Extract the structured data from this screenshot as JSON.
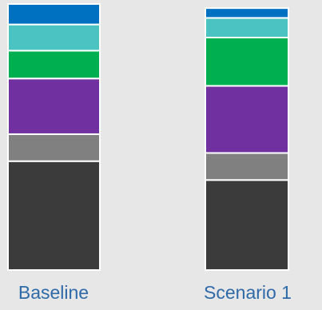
{
  "chart_data": {
    "type": "stacked-bar",
    "categories": [
      "Baseline",
      "Scenario 1"
    ],
    "series": [
      {
        "color": "#3b3b3b",
        "values": [
          133,
          110
        ]
      },
      {
        "color": "#808080",
        "values": [
          33,
          33
        ]
      },
      {
        "color": "#7030a0",
        "values": [
          68,
          82
        ]
      },
      {
        "color": "#00b050",
        "values": [
          34,
          59
        ]
      },
      {
        "color": "#4cc3c3",
        "values": [
          32,
          24
        ]
      },
      {
        "color": "#0070c0",
        "values": [
          25,
          12
        ]
      }
    ]
  }
}
